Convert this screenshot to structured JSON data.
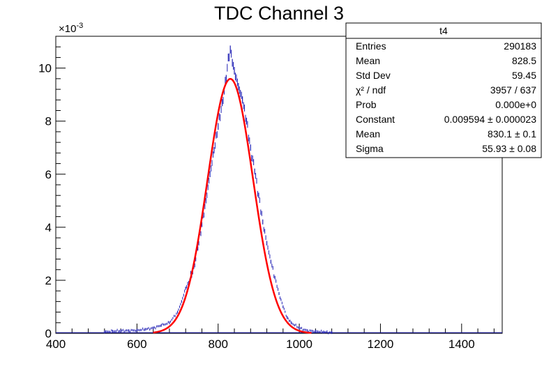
{
  "chart_data": {
    "type": "histogram",
    "title": "TDC Channel 3",
    "xlabel": "",
    "ylabel": "",
    "xlim": [
      400,
      1500
    ],
    "ylim": [
      0,
      0.0112
    ],
    "y_multiplier_label": "×10",
    "y_multiplier_exponent": "-3",
    "x_ticks": [
      "400",
      "600",
      "800",
      "1000",
      "1200",
      "1400"
    ],
    "y_ticks": [
      "0",
      "2",
      "4",
      "6",
      "8",
      "10"
    ],
    "histogram": {
      "name": "t4",
      "color": "#1f1fb4",
      "points": [
        [
          520,
          5e-05
        ],
        [
          540,
          8e-05
        ],
        [
          560,
          0.0001
        ],
        [
          580,
          0.0001
        ],
        [
          600,
          0.00012
        ],
        [
          620,
          0.00015
        ],
        [
          640,
          0.0002
        ],
        [
          660,
          0.0003
        ],
        [
          680,
          0.0004
        ],
        [
          700,
          0.0008
        ],
        [
          710,
          0.0012
        ],
        [
          720,
          0.0017
        ],
        [
          730,
          0.002
        ],
        [
          740,
          0.0025
        ],
        [
          750,
          0.0032
        ],
        [
          760,
          0.0041
        ],
        [
          770,
          0.005
        ],
        [
          780,
          0.006
        ],
        [
          790,
          0.0069
        ],
        [
          800,
          0.0078
        ],
        [
          810,
          0.0087
        ],
        [
          820,
          0.0096
        ],
        [
          825,
          0.0104
        ],
        [
          830,
          0.0107
        ],
        [
          835,
          0.0102
        ],
        [
          840,
          0.0099
        ],
        [
          850,
          0.0093
        ],
        [
          860,
          0.0088
        ],
        [
          870,
          0.008
        ],
        [
          880,
          0.007
        ],
        [
          890,
          0.0061
        ],
        [
          900,
          0.0052
        ],
        [
          910,
          0.0042
        ],
        [
          920,
          0.0034
        ],
        [
          930,
          0.0027
        ],
        [
          940,
          0.0021
        ],
        [
          950,
          0.0015
        ],
        [
          960,
          0.001
        ],
        [
          970,
          0.0006
        ],
        [
          980,
          0.0004
        ],
        [
          1000,
          0.0002
        ],
        [
          1020,
          0.0001
        ],
        [
          1040,
          8e-05
        ],
        [
          1060,
          5e-05
        ],
        [
          1080,
          3e-05
        ]
      ]
    },
    "fit": {
      "function": "gaus",
      "color": "#ff0000",
      "constant": 0.009594,
      "mean": 830.1,
      "sigma": 55.93
    },
    "stats_box": {
      "title": "t4",
      "rows": [
        {
          "label": "Entries",
          "value": "290183"
        },
        {
          "label": "Mean",
          "value": "828.5"
        },
        {
          "label": "Std Dev",
          "value": "59.45"
        },
        {
          "label": "χ² / ndf",
          "value": "3957 / 637"
        },
        {
          "label": "Prob",
          "value": "0.000e+0"
        },
        {
          "label": "Constant",
          "value": "0.009594 ± 0.000023"
        },
        {
          "label": "Mean",
          "value": "830.1 ± 0.1"
        },
        {
          "label": "Sigma",
          "value": "55.93 ± 0.08"
        }
      ]
    }
  }
}
